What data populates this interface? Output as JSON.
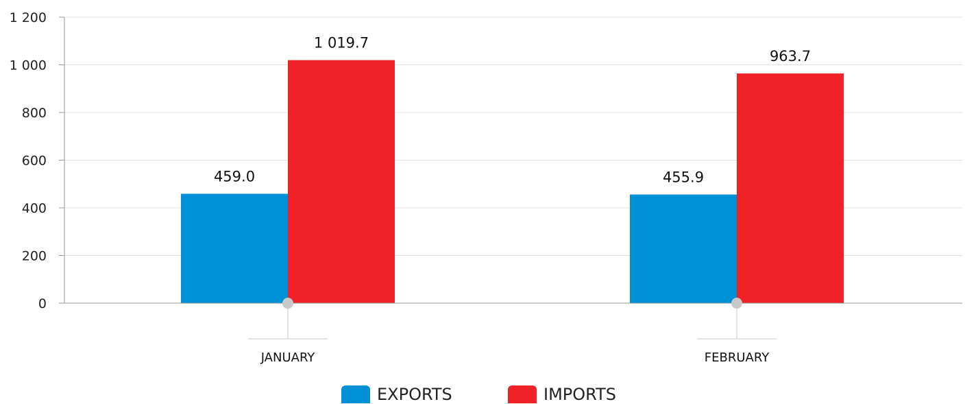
{
  "chart_data": {
    "type": "bar",
    "categories": [
      "JANUARY",
      "FEBRUARY"
    ],
    "series": [
      {
        "name": "EXPORTS",
        "values": [
          459.0,
          455.9
        ],
        "labels": [
          "459.0",
          "455.9"
        ],
        "color": "#0090d6"
      },
      {
        "name": "IMPORTS",
        "values": [
          1019.7,
          963.7
        ],
        "labels": [
          "1 019.7",
          "963.7"
        ],
        "color": "#ee2227"
      }
    ],
    "yticks": [
      0,
      200,
      400,
      600,
      800,
      1000,
      1200
    ],
    "ytick_labels": [
      "0",
      "200",
      "400",
      "600",
      "800",
      "1 000",
      "1 200"
    ],
    "ylim": [
      0,
      1200
    ],
    "grid": true,
    "legend_position": "bottom-center",
    "title": "",
    "xlabel": "",
    "ylabel": ""
  },
  "legend": {
    "exports_label": "EXPORTS",
    "imports_label": "IMPORTS"
  },
  "colors": {
    "exports": "#0090d6",
    "imports": "#ee2227",
    "grid": "#e3e3e3",
    "axis": "#9a9a9a",
    "marker": "#c8c8c8"
  }
}
